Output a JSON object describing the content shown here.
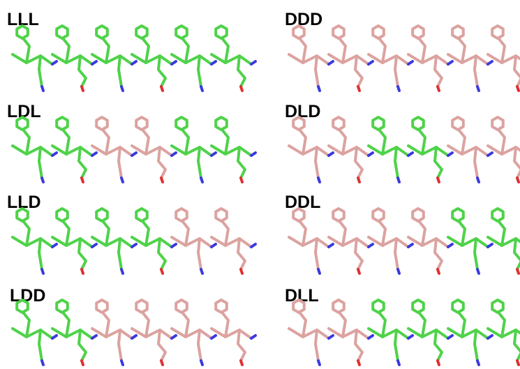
{
  "panels": [
    {
      "label": "LLL"
    },
    {
      "label": "DDD"
    },
    {
      "label": "LDL"
    },
    {
      "label": "DLD"
    },
    {
      "label": "LLD"
    },
    {
      "label": "DDL"
    },
    {
      "label": "LDD"
    },
    {
      "label": "DLL"
    }
  ]
}
